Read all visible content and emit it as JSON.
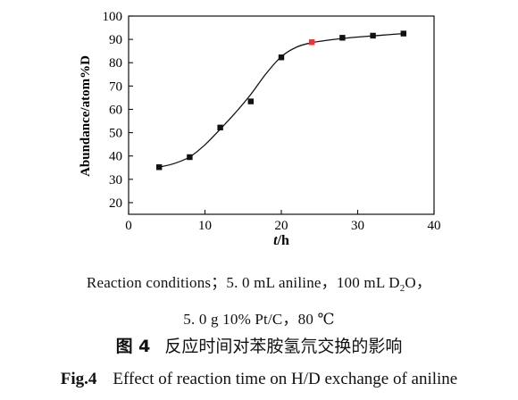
{
  "chart_data": {
    "type": "scatter",
    "title": "",
    "xlabel_var": "t",
    "xlabel_unit": "/h",
    "ylabel": "Abundance/atom%D",
    "xlim": [
      0,
      40
    ],
    "ylim": [
      15,
      100
    ],
    "xticks": [
      0,
      10,
      20,
      30,
      40
    ],
    "yticks": [
      20,
      30,
      40,
      50,
      60,
      70,
      80,
      90,
      100
    ],
    "grid": false,
    "legend": "none",
    "series": [
      {
        "marker": "square",
        "color": "#111111",
        "x": [
          4,
          8,
          12,
          16,
          20,
          24,
          28,
          32,
          36
        ],
        "y": [
          35.2,
          39.5,
          52.2,
          63.4,
          82.3,
          88.8,
          90.7,
          91.6,
          92.5
        ]
      }
    ],
    "highlight": {
      "x": 24,
      "y": 88.8,
      "color": "#e8343a"
    },
    "fit_curve": {
      "style": "smooth sigmoid",
      "color": "#111111",
      "x": [
        4,
        6,
        8,
        10,
        12,
        14,
        16,
        18,
        20,
        22,
        24,
        26,
        28,
        30,
        32,
        34,
        36
      ],
      "y": [
        35.2,
        36.8,
        39.6,
        44.8,
        51.5,
        58.6,
        66.4,
        75.3,
        82.6,
        86.7,
        88.6,
        89.6,
        90.4,
        91.0,
        91.5,
        92.0,
        92.5
      ]
    }
  },
  "captions": {
    "conditions_line1_pre": "Reaction conditions；5. 0 mL aniline，100 mL D",
    "conditions_line1_sub": "2",
    "conditions_line1_post": "O，",
    "conditions_line2": "5. 0 g 10% Pt/C，80 ℃",
    "cn_fig_number": "图 4",
    "cn_title": "反应时间对苯胺氢氘交换的影响",
    "en_fig_number": "Fig.4",
    "en_title": "Effect of reaction time on H/D exchange of aniline"
  }
}
